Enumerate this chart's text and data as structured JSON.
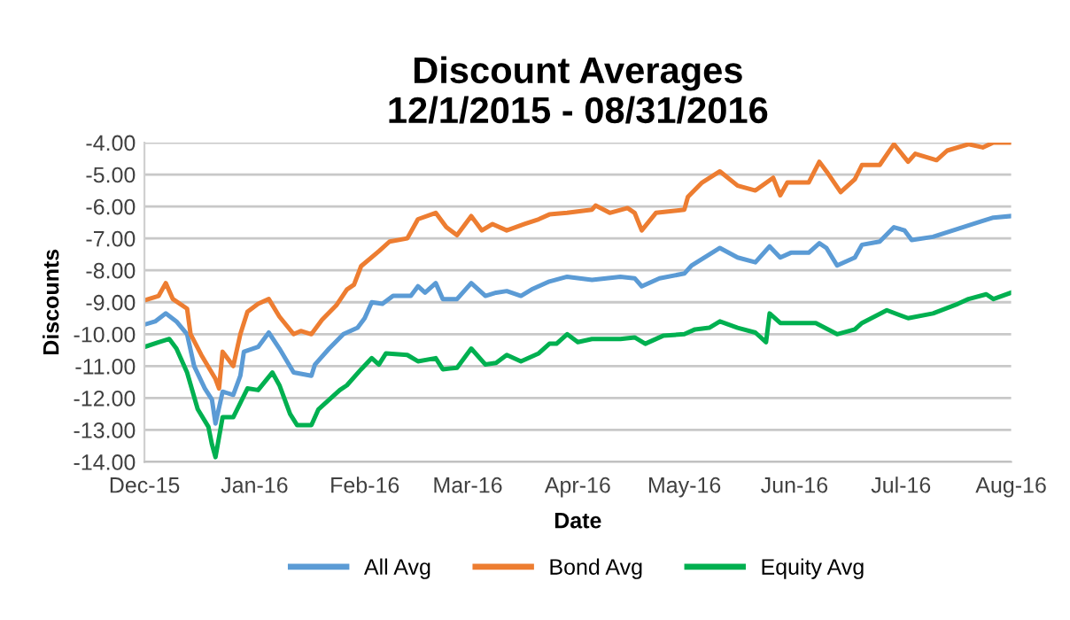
{
  "chart_data": {
    "type": "line",
    "title": "Discount Averages\n12/1/2015 - 08/31/2016",
    "xlabel": "Date",
    "ylabel": "Discounts",
    "xlim": [
      "2015-12-01",
      "2016-08-01"
    ],
    "xticks": [
      {
        "value": "2015-12-01",
        "label": "Dec-15"
      },
      {
        "value": "2016-01-01",
        "label": "Jan-16"
      },
      {
        "value": "2016-02-01",
        "label": "Feb-16"
      },
      {
        "value": "2016-03-01",
        "label": "Mar-16"
      },
      {
        "value": "2016-04-01",
        "label": "Apr-16"
      },
      {
        "value": "2016-05-01",
        "label": "May-16"
      },
      {
        "value": "2016-06-01",
        "label": "Jun-16"
      },
      {
        "value": "2016-07-01",
        "label": "Jul-16"
      },
      {
        "value": "2016-08-01",
        "label": "Aug-16"
      }
    ],
    "ylim": [
      -14,
      -4
    ],
    "yticks": [
      {
        "value": -14,
        "label": "-14.00"
      },
      {
        "value": -13,
        "label": "-13.00"
      },
      {
        "value": -12,
        "label": "-12.00"
      },
      {
        "value": -11,
        "label": "-11.00"
      },
      {
        "value": -10,
        "label": "-10.00"
      },
      {
        "value": -9,
        "label": "-9.00"
      },
      {
        "value": -8,
        "label": "-8.00"
      },
      {
        "value": -7,
        "label": "-7.00"
      },
      {
        "value": -6,
        "label": "-6.00"
      },
      {
        "value": -5,
        "label": "-5.00"
      },
      {
        "value": -4,
        "label": "-4.00"
      }
    ],
    "grid": "y",
    "legend": "bottom",
    "marker": "none",
    "line_style": "solid",
    "series": [
      {
        "name": "All Avg",
        "color": "#5b9bd5",
        "x": [
          "2015-12-01",
          "2015-12-04",
          "2015-12-07",
          "2015-12-10",
          "2015-12-13",
          "2015-12-15",
          "2015-12-18",
          "2015-12-20",
          "2015-12-21",
          "2015-12-23",
          "2015-12-26",
          "2015-12-28",
          "2015-12-29",
          "2016-01-02",
          "2016-01-05",
          "2016-01-08",
          "2016-01-12",
          "2016-01-17",
          "2016-01-18",
          "2016-01-22",
          "2016-01-26",
          "2016-01-30",
          "2016-02-01",
          "2016-02-03",
          "2016-02-06",
          "2016-02-09",
          "2016-02-14",
          "2016-02-16",
          "2016-02-18",
          "2016-02-21",
          "2016-02-23",
          "2016-02-27",
          "2016-03-02",
          "2016-03-06",
          "2016-03-09",
          "2016-03-12",
          "2016-03-16",
          "2016-03-19",
          "2016-03-24",
          "2016-03-29",
          "2016-04-05",
          "2016-04-13",
          "2016-04-17",
          "2016-04-19",
          "2016-04-24",
          "2016-05-01",
          "2016-05-03",
          "2016-05-11",
          "2016-05-16",
          "2016-05-21",
          "2016-05-25",
          "2016-05-28",
          "2016-05-31",
          "2016-06-05",
          "2016-06-08",
          "2016-06-10",
          "2016-06-13",
          "2016-06-18",
          "2016-06-20",
          "2016-06-25",
          "2016-06-29",
          "2016-07-02",
          "2016-07-04",
          "2016-07-10",
          "2016-07-17",
          "2016-07-24",
          "2016-07-27",
          "2016-08-01"
        ],
        "values": [
          -9.7,
          -9.6,
          -9.35,
          -9.6,
          -10.0,
          -11.0,
          -11.7,
          -12.05,
          -12.8,
          -11.8,
          -11.9,
          -11.3,
          -10.55,
          -10.4,
          -9.95,
          -10.45,
          -11.2,
          -11.3,
          -10.95,
          -10.45,
          -10.0,
          -9.8,
          -9.5,
          -9.0,
          -9.05,
          -8.8,
          -8.8,
          -8.5,
          -8.7,
          -8.4,
          -8.9,
          -8.9,
          -8.4,
          -8.8,
          -8.7,
          -8.65,
          -8.8,
          -8.6,
          -8.35,
          -8.2,
          -8.3,
          -8.2,
          -8.25,
          -8.5,
          -8.25,
          -8.1,
          -7.85,
          -7.3,
          -7.6,
          -7.75,
          -7.25,
          -7.6,
          -7.45,
          -7.45,
          -7.15,
          -7.3,
          -7.85,
          -7.6,
          -7.2,
          -7.1,
          -6.65,
          -6.75,
          -7.05,
          -6.95,
          -6.7,
          -6.45,
          -6.35,
          -6.3
        ]
      },
      {
        "name": "Bond Avg",
        "color": "#ed7d31",
        "x": [
          "2015-12-01",
          "2015-12-05",
          "2015-12-07",
          "2015-12-09",
          "2015-12-13",
          "2015-12-14",
          "2015-12-17",
          "2015-12-21",
          "2015-12-22",
          "2015-12-23",
          "2015-12-26",
          "2015-12-28",
          "2015-12-30",
          "2016-01-02",
          "2016-01-05",
          "2016-01-08",
          "2016-01-12",
          "2016-01-14",
          "2016-01-17",
          "2016-01-20",
          "2016-01-24",
          "2016-01-27",
          "2016-01-29",
          "2016-01-31",
          "2016-02-05",
          "2016-02-08",
          "2016-02-13",
          "2016-02-16",
          "2016-02-21",
          "2016-02-24",
          "2016-02-27",
          "2016-03-02",
          "2016-03-05",
          "2016-03-08",
          "2016-03-12",
          "2016-03-17",
          "2016-03-21",
          "2016-03-24",
          "2016-03-29",
          "2016-04-05",
          "2016-04-06",
          "2016-04-10",
          "2016-04-15",
          "2016-04-17",
          "2016-04-19",
          "2016-04-23",
          "2016-05-01",
          "2016-05-02",
          "2016-05-06",
          "2016-05-11",
          "2016-05-16",
          "2016-05-21",
          "2016-05-26",
          "2016-05-28",
          "2016-05-30",
          "2016-06-05",
          "2016-06-08",
          "2016-06-10",
          "2016-06-14",
          "2016-06-18",
          "2016-06-20",
          "2016-06-25",
          "2016-06-29",
          "2016-07-03",
          "2016-07-05",
          "2016-07-11",
          "2016-07-14",
          "2016-07-20",
          "2016-07-24",
          "2016-07-27",
          "2016-08-01"
        ],
        "values": [
          -8.94,
          -8.8,
          -8.4,
          -8.9,
          -9.2,
          -10.0,
          -10.65,
          -11.4,
          -11.7,
          -10.55,
          -11.0,
          -10.0,
          -9.3,
          -9.05,
          -8.9,
          -9.45,
          -10.0,
          -9.9,
          -10.0,
          -9.55,
          -9.1,
          -8.6,
          -8.45,
          -7.87,
          -7.4,
          -7.1,
          -7.0,
          -6.4,
          -6.2,
          -6.65,
          -6.9,
          -6.3,
          -6.75,
          -6.55,
          -6.75,
          -6.55,
          -6.4,
          -6.25,
          -6.2,
          -6.1,
          -5.97,
          -6.2,
          -6.05,
          -6.2,
          -6.75,
          -6.2,
          -6.1,
          -5.7,
          -5.25,
          -4.9,
          -5.35,
          -5.5,
          -5.1,
          -5.65,
          -5.25,
          -5.25,
          -4.6,
          -4.9,
          -5.55,
          -5.15,
          -4.7,
          -4.7,
          -4.05,
          -4.6,
          -4.35,
          -4.55,
          -4.25,
          -4.05,
          -4.15,
          -4.0,
          -4.0
        ]
      },
      {
        "name": "Equity Avg",
        "color": "#00b050",
        "x": [
          "2015-12-01",
          "2015-12-05",
          "2015-12-08",
          "2015-12-10",
          "2015-12-13",
          "2015-12-16",
          "2015-12-19",
          "2015-12-20",
          "2015-12-21",
          "2015-12-23",
          "2015-12-26",
          "2015-12-28",
          "2015-12-30",
          "2016-01-02",
          "2016-01-06",
          "2016-01-08",
          "2016-01-11",
          "2016-01-13",
          "2016-01-17",
          "2016-01-19",
          "2016-01-23",
          "2016-01-25",
          "2016-01-27",
          "2016-01-31",
          "2016-02-03",
          "2016-02-05",
          "2016-02-07",
          "2016-02-13",
          "2016-02-16",
          "2016-02-21",
          "2016-02-23",
          "2016-02-27",
          "2016-03-02",
          "2016-03-06",
          "2016-03-09",
          "2016-03-12",
          "2016-03-16",
          "2016-03-21",
          "2016-03-24",
          "2016-03-26",
          "2016-03-29",
          "2016-04-01",
          "2016-04-05",
          "2016-04-13",
          "2016-04-17",
          "2016-04-20",
          "2016-04-25",
          "2016-05-01",
          "2016-05-04",
          "2016-05-08",
          "2016-05-11",
          "2016-05-16",
          "2016-05-21",
          "2016-05-24",
          "2016-05-25",
          "2016-05-28",
          "2016-05-31",
          "2016-06-07",
          "2016-06-13",
          "2016-06-18",
          "2016-06-20",
          "2016-06-27",
          "2016-07-03",
          "2016-07-10",
          "2016-07-17",
          "2016-07-20",
          "2016-07-25",
          "2016-07-27",
          "2016-08-01"
        ],
        "values": [
          -10.4,
          -10.25,
          -10.15,
          -10.45,
          -11.2,
          -12.35,
          -12.9,
          -13.45,
          -13.85,
          -12.6,
          -12.6,
          -12.15,
          -11.7,
          -11.75,
          -11.2,
          -11.6,
          -12.5,
          -12.85,
          -12.85,
          -12.35,
          -11.95,
          -11.75,
          -11.6,
          -11.1,
          -10.75,
          -10.95,
          -10.6,
          -10.65,
          -10.85,
          -10.75,
          -11.1,
          -11.05,
          -10.45,
          -10.95,
          -10.9,
          -10.65,
          -10.85,
          -10.6,
          -10.3,
          -10.3,
          -10.0,
          -10.25,
          -10.15,
          -10.15,
          -10.1,
          -10.3,
          -10.05,
          -10.0,
          -9.85,
          -9.8,
          -9.6,
          -9.8,
          -9.95,
          -10.25,
          -9.35,
          -9.65,
          -9.65,
          -9.65,
          -10.0,
          -9.85,
          -9.65,
          -9.25,
          -9.5,
          -9.35,
          -9.05,
          -8.9,
          -8.75,
          -8.9,
          -8.7
        ]
      }
    ]
  }
}
